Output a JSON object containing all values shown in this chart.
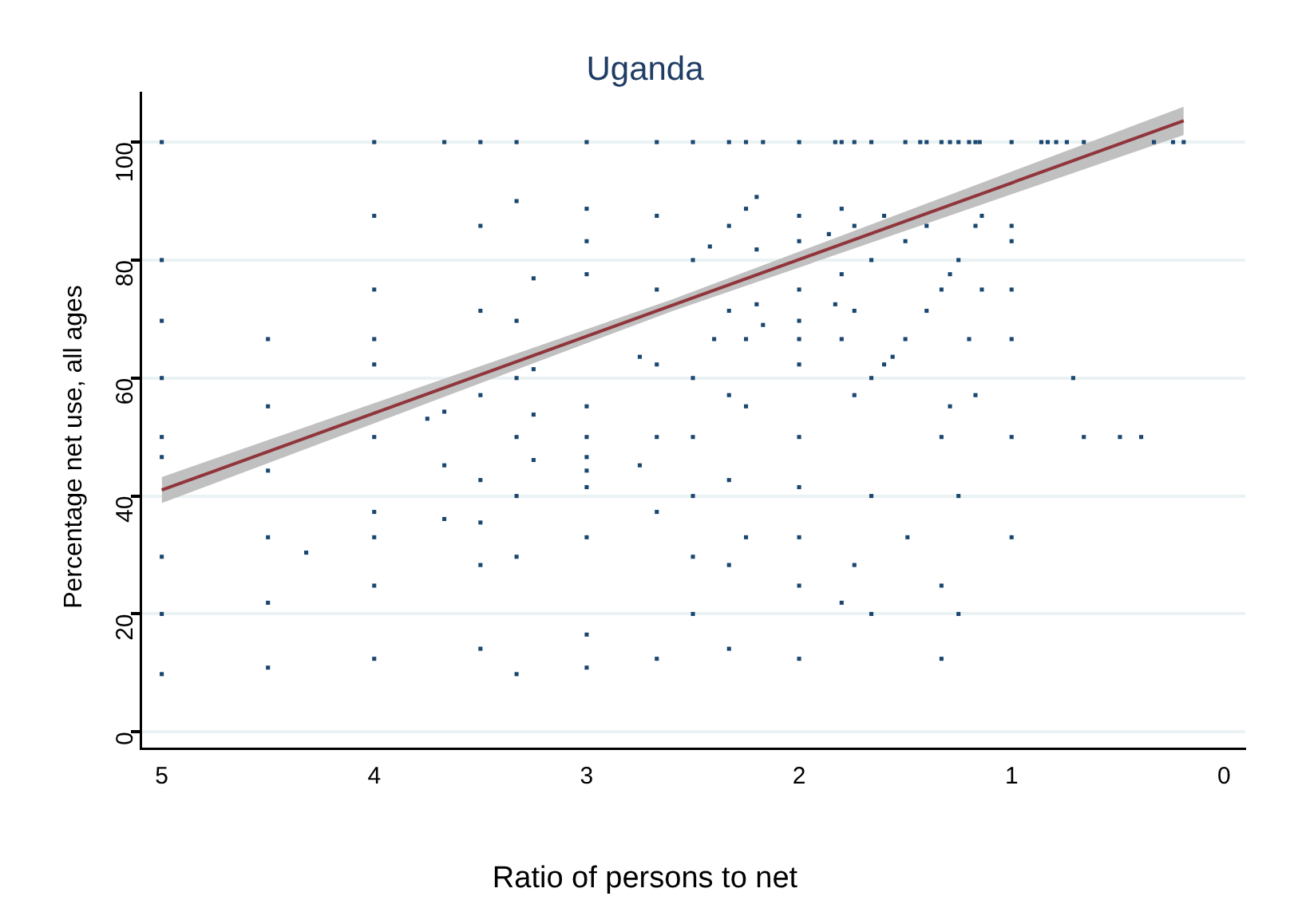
{
  "chart_data": {
    "type": "scatter",
    "title": "Uganda",
    "xlabel": "Ratio of persons to net",
    "ylabel": "Percentage net use, all ages",
    "xlim": [
      5.1,
      -0.1
    ],
    "xticks": [
      5,
      4,
      3,
      2,
      1,
      0
    ],
    "ylim": [
      -2.8,
      108.4
    ],
    "yticks": [
      0,
      20,
      40,
      60,
      80,
      100
    ],
    "grid": "y",
    "series": [
      {
        "color": "#1a476f",
        "marker": "square",
        "x": [
          5,
          4,
          3.67,
          3.5,
          3.33,
          3,
          2.67,
          2.5,
          2.33,
          2.25,
          2.17,
          2,
          1.83,
          1.8,
          1.74,
          1.66,
          1.5,
          1.43,
          1.4,
          1.33,
          1.29,
          1.25,
          1.2,
          1.17,
          1.15,
          1,
          0.86,
          0.83,
          0.79,
          0.74,
          0.66,
          0.33,
          0.24,
          0.19,
          4,
          3.5,
          3.33,
          3,
          3,
          2.67,
          5,
          2.5,
          3.25,
          3,
          4,
          2.67,
          3.5,
          5,
          3.33,
          4.5,
          4,
          4,
          2.75,
          2.67,
          3.25,
          5,
          3.33,
          2.5,
          4.5,
          3.5,
          3.67,
          3.75,
          3.25,
          3,
          5,
          4,
          3.33,
          3,
          2.67,
          2.5,
          5,
          3.67,
          3.25,
          3,
          3,
          2.75,
          4.5,
          3.5,
          3,
          3.33,
          2.5,
          4,
          3.67,
          3.5,
          2.67,
          4.5,
          4,
          3,
          5,
          4.32,
          3.33,
          2.5,
          3.5,
          4,
          4.5,
          5,
          2.5,
          3,
          3.5,
          4,
          2.67,
          4.5,
          3,
          3.33,
          5,
          2.2,
          2.25,
          1.8,
          2,
          1.6,
          1.14,
          2.33,
          1.74,
          1.4,
          1.17,
          1,
          1.86,
          2,
          1.5,
          1,
          2.42,
          2.2,
          1.66,
          1.25,
          1.8,
          1.29,
          2,
          1.33,
          1.14,
          1,
          2.33,
          2.2,
          1.83,
          1.74,
          1.4,
          2.17,
          2,
          2.4,
          2.25,
          2,
          1.8,
          1.5,
          1.2,
          1,
          1.56,
          1.6,
          2,
          1.66,
          0.71,
          2.33,
          1.74,
          1.17,
          2.25,
          1.29,
          2,
          1.33,
          1,
          0.66,
          0.49,
          0.39,
          2.33,
          2,
          1.66,
          1.25,
          2.25,
          2,
          1.49,
          1,
          2.33,
          1.74,
          2,
          1.33,
          1.8,
          1.66,
          1.25,
          2.33,
          2,
          1.33
        ],
        "values": [
          100,
          100,
          100,
          100,
          100,
          100,
          100,
          100,
          100,
          100,
          100,
          100,
          100,
          100,
          100,
          100,
          100,
          100,
          100,
          100,
          100,
          100,
          100,
          100,
          100,
          100,
          100,
          100,
          100,
          100,
          100,
          100,
          100,
          100,
          87.5,
          85.8,
          90,
          88.7,
          83.2,
          87.5,
          80,
          80,
          76.9,
          77.6,
          75,
          75,
          71.4,
          69.7,
          69.7,
          66.6,
          66.6,
          62.3,
          63.6,
          62.3,
          61.5,
          60,
          60,
          60,
          55.2,
          57.1,
          54.3,
          53.1,
          53.8,
          55.2,
          50,
          50,
          50,
          50,
          50,
          50,
          46.6,
          45.2,
          46.1,
          46.6,
          44.3,
          45.2,
          44.3,
          42.7,
          41.5,
          40,
          40,
          37.3,
          36.1,
          35.5,
          37.3,
          33,
          33,
          33,
          29.7,
          30.4,
          29.7,
          29.7,
          28.3,
          24.8,
          21.9,
          20,
          20,
          16.5,
          14.1,
          12.4,
          12.4,
          10.9,
          10.9,
          9.8,
          9.8,
          90.7,
          88.7,
          88.7,
          87.5,
          87.5,
          87.5,
          85.8,
          85.8,
          85.8,
          85.8,
          85.8,
          84.4,
          83.2,
          83.2,
          83.2,
          82.3,
          81.8,
          80,
          80,
          77.6,
          77.6,
          75,
          75,
          75,
          75,
          71.4,
          72.5,
          72.5,
          71.4,
          71.4,
          69,
          69.7,
          66.6,
          66.6,
          66.6,
          66.6,
          66.6,
          66.6,
          66.6,
          63.6,
          62.3,
          62.3,
          60,
          60,
          57.1,
          57.1,
          57.1,
          55.2,
          55.2,
          50,
          50,
          50,
          50,
          50,
          50,
          42.7,
          41.5,
          40,
          40,
          33,
          33,
          33,
          33,
          28.3,
          28.3,
          24.8,
          24.8,
          21.9,
          20,
          20,
          14.1,
          12.4,
          12.4
        ]
      },
      {
        "type": "line",
        "color": "#90353b",
        "marker": "none",
        "x": [
          5,
          2.6,
          0.19
        ],
        "values": [
          41,
          72.3,
          103.6
        ],
        "lower": [
          38.8,
          71.3,
          101.2
        ],
        "upper": [
          43.2,
          73.3,
          106
        ]
      }
    ]
  }
}
